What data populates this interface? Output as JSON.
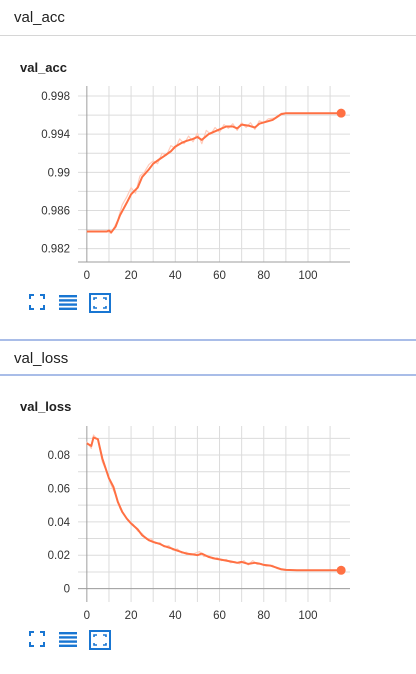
{
  "sections": [
    {
      "header": "val_acc",
      "card_title": "val_acc"
    },
    {
      "header": "val_loss",
      "card_title": "val_loss"
    }
  ],
  "colors": {
    "series_line": "#ff7043",
    "series_raw": "#ffccbc",
    "grid": "#dcdcdc",
    "axis": "#9e9e9e",
    "icon": "#1976d2",
    "header_border_selected": "#a9bde8"
  },
  "icons": [
    "fit-to-screen-icon",
    "toggle-data-icon",
    "reset-zoom-icon"
  ],
  "chart_data": [
    {
      "type": "line",
      "title": "val_acc",
      "x_ticks": [
        "0",
        "20",
        "40",
        "60",
        "80",
        "100"
      ],
      "y_ticks": [
        "0.982",
        "0.986",
        "0.99",
        "0.994",
        "0.998"
      ],
      "xlim": [
        -4,
        119
      ],
      "ylim": [
        0.9806,
        0.99905
      ],
      "grid": true,
      "series": [
        {
          "style": "smoothed",
          "points": [
            [
              0,
              0.9838
            ],
            [
              5,
              0.9838
            ],
            [
              9,
              0.9838
            ],
            [
              10,
              0.9839
            ],
            [
              11,
              0.9837
            ],
            [
              13,
              0.9843
            ],
            [
              15,
              0.9855
            ],
            [
              18,
              0.9868
            ],
            [
              20,
              0.9877
            ],
            [
              23,
              0.9884
            ],
            [
              25,
              0.9895
            ],
            [
              28,
              0.9903
            ],
            [
              30,
              0.9909
            ],
            [
              33,
              0.9914
            ],
            [
              35,
              0.9917
            ],
            [
              38,
              0.9922
            ],
            [
              40,
              0.9927
            ],
            [
              43,
              0.9931
            ],
            [
              45,
              0.9933
            ],
            [
              48,
              0.9935
            ],
            [
              50,
              0.9937
            ],
            [
              52,
              0.9934
            ],
            [
              55,
              0.994
            ],
            [
              58,
              0.9943
            ],
            [
              60,
              0.9945
            ],
            [
              63,
              0.9948
            ],
            [
              66,
              0.9948
            ],
            [
              68,
              0.9946
            ],
            [
              70,
              0.995
            ],
            [
              73,
              0.9949
            ],
            [
              76,
              0.9947
            ],
            [
              78,
              0.9951
            ],
            [
              81,
              0.9953
            ],
            [
              84,
              0.9955
            ],
            [
              86,
              0.9958
            ],
            [
              88,
              0.9961
            ],
            [
              90,
              0.9962
            ],
            [
              95,
              0.9962
            ],
            [
              100,
              0.9962
            ],
            [
              105,
              0.9962
            ],
            [
              110,
              0.9962
            ],
            [
              115,
              0.9962
            ]
          ]
        },
        {
          "style": "raw",
          "points": [
            [
              0,
              0.9838
            ],
            [
              9,
              0.9838
            ],
            [
              11,
              0.9836
            ],
            [
              14,
              0.985
            ],
            [
              16,
              0.9866
            ],
            [
              18,
              0.9874
            ],
            [
              20,
              0.9884
            ],
            [
              22,
              0.9878
            ],
            [
              24,
              0.9896
            ],
            [
              26,
              0.99
            ],
            [
              28,
              0.9908
            ],
            [
              30,
              0.9912
            ],
            [
              32,
              0.9909
            ],
            [
              34,
              0.992
            ],
            [
              36,
              0.9918
            ],
            [
              38,
              0.9928
            ],
            [
              40,
              0.9925
            ],
            [
              42,
              0.9935
            ],
            [
              44,
              0.993
            ],
            [
              46,
              0.9938
            ],
            [
              48,
              0.9932
            ],
            [
              50,
              0.9941
            ],
            [
              52,
              0.993
            ],
            [
              54,
              0.9944
            ],
            [
              56,
              0.994
            ],
            [
              58,
              0.9947
            ],
            [
              60,
              0.9942
            ],
            [
              62,
              0.995
            ],
            [
              64,
              0.9946
            ],
            [
              66,
              0.9951
            ],
            [
              68,
              0.9944
            ],
            [
              70,
              0.9952
            ],
            [
              72,
              0.9947
            ],
            [
              74,
              0.9952
            ],
            [
              76,
              0.9945
            ],
            [
              78,
              0.9954
            ],
            [
              80,
              0.9952
            ],
            [
              82,
              0.9956
            ],
            [
              85,
              0.9957
            ],
            [
              88,
              0.9962
            ],
            [
              90,
              0.9962
            ],
            [
              115,
              0.9962
            ]
          ]
        }
      ],
      "last_point": [
        115,
        0.9962
      ]
    },
    {
      "type": "line",
      "title": "val_loss",
      "x_ticks": [
        "0",
        "20",
        "40",
        "60",
        "80",
        "100"
      ],
      "y_ticks": [
        "0",
        "0.02",
        "0.04",
        "0.06",
        "0.08"
      ],
      "xlim": [
        -4,
        119
      ],
      "ylim": [
        -0.008,
        0.0974
      ],
      "grid": true,
      "series": [
        {
          "style": "smoothed",
          "points": [
            [
              0,
              0.087
            ],
            [
              2,
              0.0855
            ],
            [
              3,
              0.0905
            ],
            [
              5,
              0.0895
            ],
            [
              7,
              0.078
            ],
            [
              10,
              0.066
            ],
            [
              12,
              0.061
            ],
            [
              14,
              0.052
            ],
            [
              16,
              0.046
            ],
            [
              18,
              0.042
            ],
            [
              20,
              0.039
            ],
            [
              23,
              0.0355
            ],
            [
              25,
              0.032
            ],
            [
              28,
              0.029
            ],
            [
              30,
              0.028
            ],
            [
              33,
              0.0268
            ],
            [
              35,
              0.0255
            ],
            [
              38,
              0.0242
            ],
            [
              40,
              0.0232
            ],
            [
              43,
              0.0218
            ],
            [
              45,
              0.021
            ],
            [
              48,
              0.0205
            ],
            [
              50,
              0.02
            ],
            [
              52,
              0.021
            ],
            [
              55,
              0.019
            ],
            [
              58,
              0.018
            ],
            [
              60,
              0.0175
            ],
            [
              63,
              0.0168
            ],
            [
              66,
              0.016
            ],
            [
              68,
              0.0155
            ],
            [
              70,
              0.016
            ],
            [
              73,
              0.0148
            ],
            [
              76,
              0.0155
            ],
            [
              78,
              0.015
            ],
            [
              80,
              0.0142
            ],
            [
              83,
              0.0138
            ],
            [
              86,
              0.0125
            ],
            [
              88,
              0.0116
            ],
            [
              90,
              0.0112
            ],
            [
              95,
              0.011
            ],
            [
              100,
              0.011
            ],
            [
              105,
              0.011
            ],
            [
              110,
              0.011
            ],
            [
              115,
              0.011
            ]
          ]
        },
        {
          "style": "raw",
          "points": [
            [
              0,
              0.088
            ],
            [
              2,
              0.084
            ],
            [
              3,
              0.092
            ],
            [
              5,
              0.089
            ],
            [
              7,
              0.076
            ],
            [
              9,
              0.07
            ],
            [
              11,
              0.062
            ],
            [
              13,
              0.056
            ],
            [
              15,
              0.048
            ],
            [
              17,
              0.044
            ],
            [
              19,
              0.04
            ],
            [
              21,
              0.0385
            ],
            [
              23,
              0.0345
            ],
            [
              25,
              0.033
            ],
            [
              27,
              0.0295
            ],
            [
              29,
              0.03
            ],
            [
              31,
              0.027
            ],
            [
              33,
              0.0275
            ],
            [
              35,
              0.025
            ],
            [
              37,
              0.0258
            ],
            [
              39,
              0.023
            ],
            [
              41,
              0.0238
            ],
            [
              43,
              0.0212
            ],
            [
              45,
              0.0218
            ],
            [
              47,
              0.02
            ],
            [
              49,
              0.0212
            ],
            [
              51,
              0.0222
            ],
            [
              53,
              0.0192
            ],
            [
              55,
              0.0198
            ],
            [
              57,
              0.0178
            ],
            [
              59,
              0.0185
            ],
            [
              61,
              0.0168
            ],
            [
              63,
              0.0175
            ],
            [
              65,
              0.0155
            ],
            [
              67,
              0.0162
            ],
            [
              69,
              0.0148
            ],
            [
              71,
              0.0168
            ],
            [
              73,
              0.0142
            ],
            [
              75,
              0.0168
            ],
            [
              77,
              0.0145
            ],
            [
              79,
              0.015
            ],
            [
              81,
              0.0135
            ],
            [
              84,
              0.014
            ],
            [
              86,
              0.012
            ],
            [
              88,
              0.0112
            ],
            [
              90,
              0.011
            ],
            [
              115,
              0.011
            ]
          ]
        }
      ],
      "last_point": [
        115,
        0.011
      ]
    }
  ]
}
